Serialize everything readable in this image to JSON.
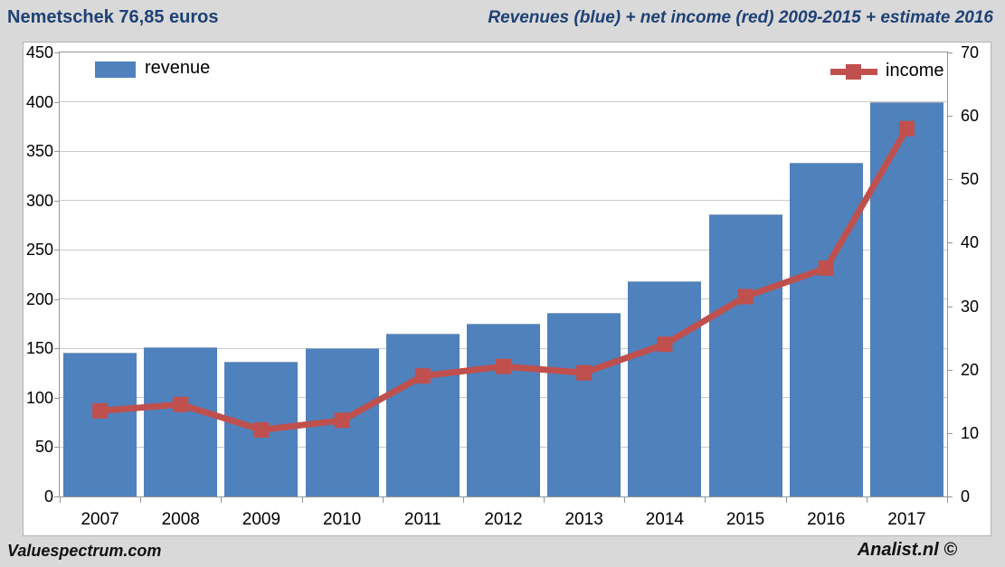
{
  "header": {
    "left_title": "Nemetschek 76,85 euros",
    "right_title": "Revenues (blue) + net income (red) 2009-2015 + estimate 2016"
  },
  "footer": {
    "left": "Valuespectrum.com",
    "right": "Analist.nl ©"
  },
  "legend": {
    "revenue_label": "revenue",
    "income_label": "income"
  },
  "colors": {
    "bar": "#4f81bd",
    "line": "#c0504d",
    "title": "#1e4175",
    "background": "#d9d9d9",
    "plot_border": "#969696",
    "gridline": "#c9c9c9"
  },
  "chart_data": {
    "type": "bar",
    "subtype": "bar+line-combo",
    "title": "Revenues (blue) + net income (red) 2009-2015 + estimate 2016",
    "categories": [
      "2007",
      "2008",
      "2009",
      "2010",
      "2011",
      "2012",
      "2013",
      "2014",
      "2015",
      "2016",
      "2017"
    ],
    "series": [
      {
        "name": "revenue",
        "type": "bar",
        "axis": "left",
        "color": "#4f81bd",
        "values": [
          146,
          151,
          137,
          150,
          165,
          175,
          186,
          218,
          286,
          338,
          400
        ]
      },
      {
        "name": "income",
        "type": "line",
        "axis": "right",
        "color": "#c0504d",
        "marker": "square",
        "values": [
          13.5,
          14.5,
          10.5,
          12,
          19,
          20.5,
          19.5,
          24,
          31.5,
          36,
          58
        ]
      }
    ],
    "left_axis": {
      "min": 0,
      "max": 450,
      "step": 50,
      "labels": [
        "0",
        "50",
        "100",
        "150",
        "200",
        "250",
        "300",
        "350",
        "400",
        "450"
      ]
    },
    "right_axis": {
      "min": 0,
      "max": 70,
      "step": 10,
      "labels": [
        "0",
        "10",
        "20",
        "30",
        "40",
        "50",
        "60",
        "70"
      ]
    },
    "grid": "horizontal",
    "legend_position": "inside-top"
  }
}
